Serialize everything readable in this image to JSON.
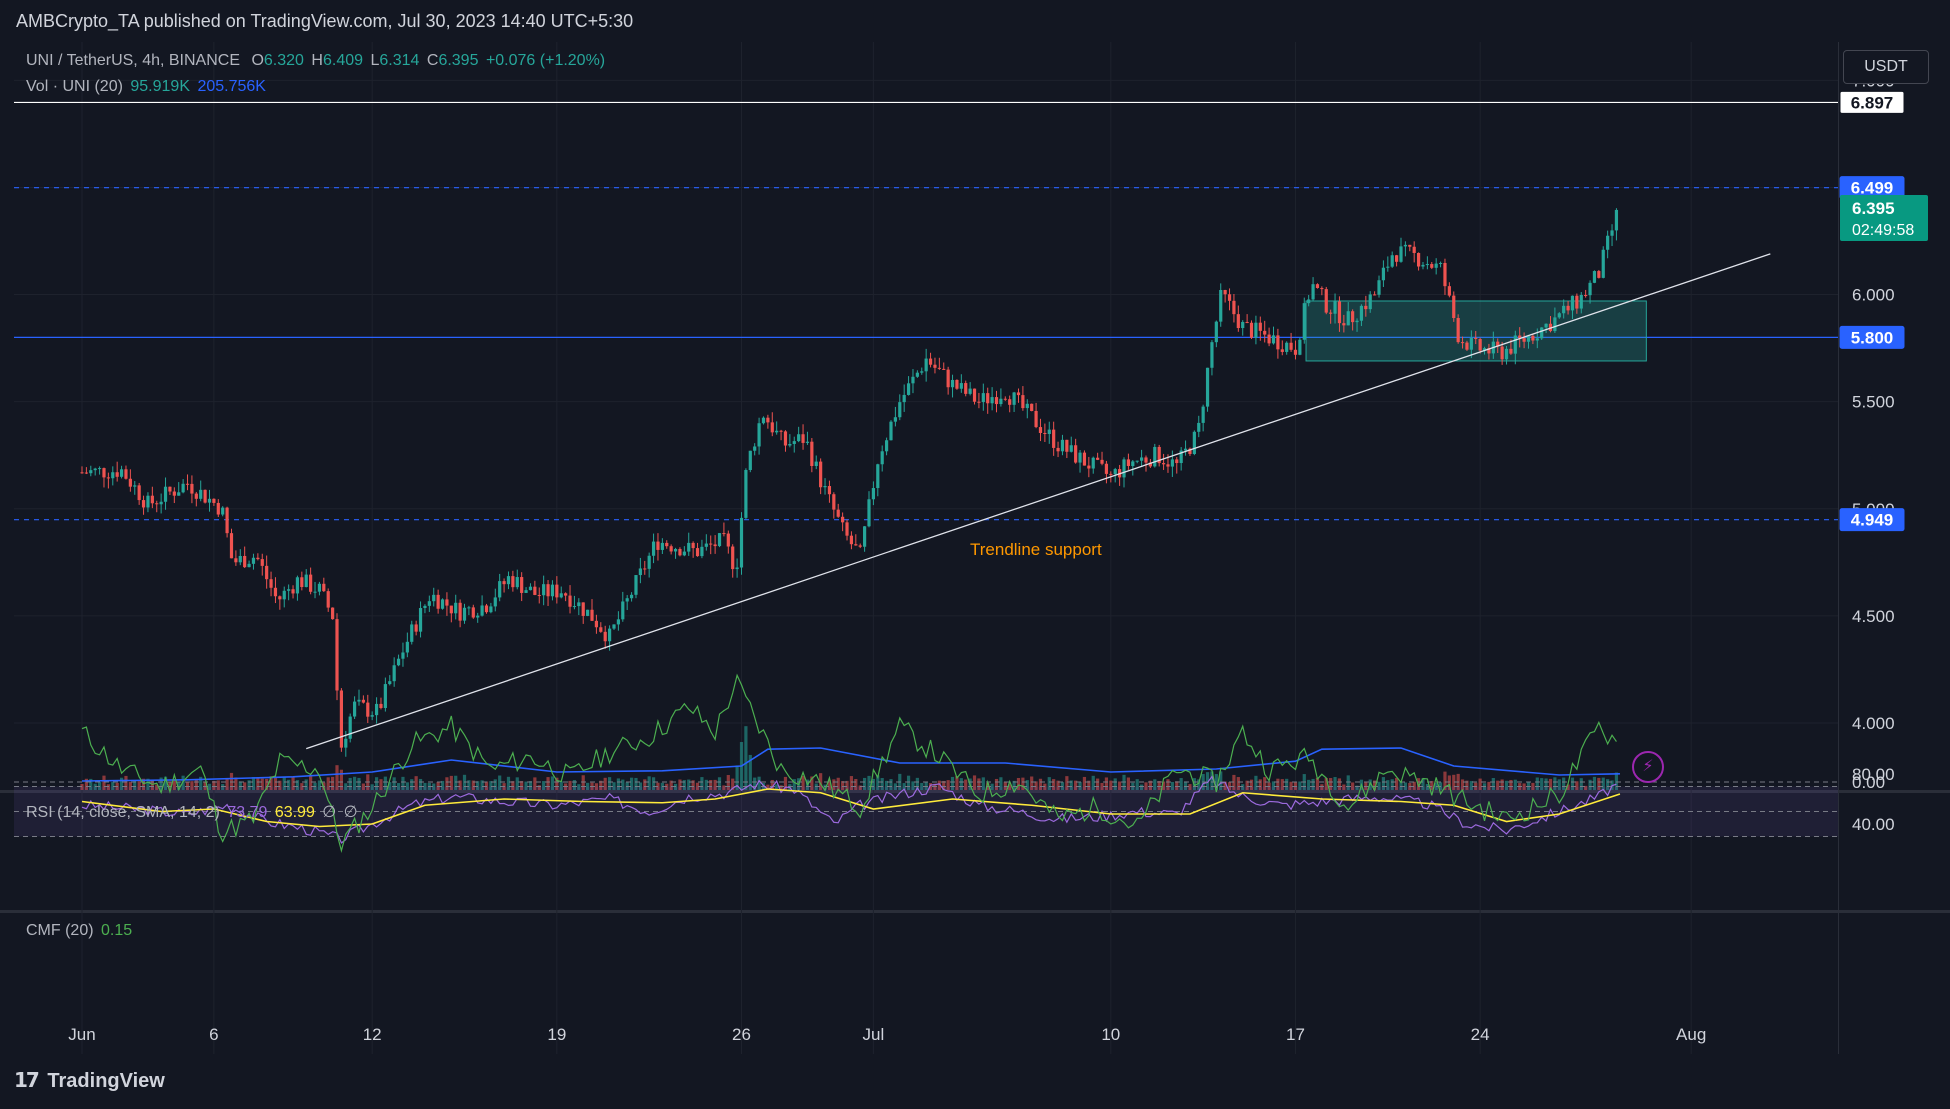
{
  "header": {
    "published_by": "AMBCrypto_TA published on TradingView.com, Jul 30, 2023 14:40 UTC+5:30"
  },
  "legend": {
    "pair": "UNI / TetherUS, 4h, BINANCE",
    "open_label": "O",
    "open": "6.320",
    "high_label": "H",
    "high": "6.409",
    "low_label": "L",
    "low": "6.314",
    "close_label": "C",
    "close": "6.395",
    "change": "+0.076 (+1.20%)",
    "vol_label": "Vol · UNI (20)",
    "vol_value": "95.919K",
    "vol_ma": "205.756K"
  },
  "currency_button": "USDT",
  "annotation": "Trendline support",
  "price_tags": {
    "resistance_top": "6.897",
    "resistance_dash": "6.499",
    "last_price": "6.395",
    "countdown": "02:49:58",
    "support_mid": "5.800",
    "support_low": "4.949"
  },
  "rsi_legend": {
    "label": "RSI (14, close, SMA, 14, 2)",
    "rsi": "73.79",
    "sma": "63.99",
    "na1": "∅",
    "na2": "∅"
  },
  "cmf_legend": {
    "label": "CMF (20)",
    "value": "0.15"
  },
  "footer": {
    "brand": "TradingView",
    "logo_icon": "tradingview-logo-icon"
  },
  "colors": {
    "background": "#131722",
    "up": "#26a69a",
    "down": "#ef5350",
    "blue": "#2962ff",
    "rsi": "#9c6ade",
    "rsi_sma": "#ffeb3b",
    "cmf": "#4caf50"
  },
  "chart_data": [
    {
      "type": "candlestick",
      "title": "UNI / TetherUS, 4h, BINANCE",
      "ylim": [
        3.78,
        7.05
      ],
      "y_ticks": [
        "4.000",
        "4.500",
        "5.000",
        "5.500",
        "6.000",
        "6.500",
        "7.000"
      ],
      "x_ticks": [
        "Jun",
        "6",
        "12",
        "19",
        "26",
        "Jul",
        "10",
        "17",
        "24",
        "Aug"
      ],
      "x_ticks_day_index": [
        0,
        5,
        11,
        18,
        25,
        30,
        39,
        46,
        53,
        61
      ],
      "close_path": [
        [
          0,
          5.17
        ],
        [
          1.5,
          5.18
        ],
        [
          2.5,
          5.02
        ],
        [
          4,
          5.12
        ],
        [
          5.3,
          5.0
        ],
        [
          5.7,
          4.75
        ],
        [
          6.6,
          4.78
        ],
        [
          7.4,
          4.57
        ],
        [
          8.2,
          4.67
        ],
        [
          9.0,
          4.62
        ],
        [
          9.5,
          4.5
        ],
        [
          9.8,
          3.88
        ],
        [
          10.3,
          4.08
        ],
        [
          11.2,
          4.05
        ],
        [
          12.2,
          4.35
        ],
        [
          13.2,
          4.6
        ],
        [
          14.3,
          4.52
        ],
        [
          15.3,
          4.55
        ],
        [
          16.2,
          4.68
        ],
        [
          17.2,
          4.6
        ],
        [
          18.2,
          4.62
        ],
        [
          19.3,
          4.5
        ],
        [
          20.0,
          4.4
        ],
        [
          20.8,
          4.6
        ],
        [
          21.8,
          4.85
        ],
        [
          23.3,
          4.8
        ],
        [
          24.3,
          4.85
        ],
        [
          24.8,
          4.72
        ],
        [
          25.2,
          5.2
        ],
        [
          25.8,
          5.45
        ],
        [
          26.6,
          5.3
        ],
        [
          27.4,
          5.33
        ],
        [
          28.1,
          5.1
        ],
        [
          28.9,
          4.88
        ],
        [
          29.5,
          4.78
        ],
        [
          30.2,
          5.25
        ],
        [
          31.0,
          5.5
        ],
        [
          32.0,
          5.7
        ],
        [
          33.0,
          5.58
        ],
        [
          34.0,
          5.5
        ],
        [
          35.0,
          5.55
        ],
        [
          35.8,
          5.45
        ],
        [
          37.0,
          5.3
        ],
        [
          38.0,
          5.22
        ],
        [
          39.0,
          5.15
        ],
        [
          39.8,
          5.22
        ],
        [
          40.8,
          5.25
        ],
        [
          41.5,
          5.2
        ],
        [
          42.3,
          5.35
        ],
        [
          42.8,
          5.75
        ],
        [
          43.2,
          6.0
        ],
        [
          44.0,
          5.85
        ],
        [
          45.0,
          5.8
        ],
        [
          46.0,
          5.75
        ],
        [
          46.6,
          6.05
        ],
        [
          47.2,
          5.95
        ],
        [
          48.0,
          5.88
        ],
        [
          49.0,
          6.0
        ],
        [
          49.7,
          6.2
        ],
        [
          50.5,
          6.18
        ],
        [
          51.5,
          6.12
        ],
        [
          52.2,
          5.8
        ],
        [
          52.8,
          5.75
        ],
        [
          53.8,
          5.73
        ],
        [
          54.8,
          5.8
        ],
        [
          55.8,
          5.88
        ],
        [
          56.8,
          5.98
        ],
        [
          57.5,
          6.1
        ],
        [
          58.0,
          6.3
        ],
        [
          58.3,
          6.395
        ]
      ],
      "horizontal_levels": [
        6.897,
        6.499,
        5.8,
        4.949
      ],
      "trendline": {
        "from": [
          8.5,
          3.88
        ],
        "to": [
          64.0,
          6.19
        ]
      },
      "zone": {
        "x_from": 46.4,
        "x_to": 59.3,
        "y_from": 5.69,
        "y_to": 5.97
      },
      "volume_ma_path": [
        [
          0,
          0.15
        ],
        [
          4,
          0.17
        ],
        [
          8,
          0.22
        ],
        [
          11,
          0.3
        ],
        [
          14,
          0.5
        ],
        [
          18,
          0.3
        ],
        [
          22,
          0.32
        ],
        [
          25,
          0.4
        ],
        [
          26,
          0.68
        ],
        [
          28,
          0.7
        ],
        [
          31,
          0.45
        ],
        [
          35,
          0.45
        ],
        [
          39,
          0.3
        ],
        [
          43,
          0.35
        ],
        [
          46,
          0.48
        ],
        [
          47,
          0.68
        ],
        [
          50,
          0.7
        ],
        [
          52,
          0.4
        ],
        [
          56,
          0.25
        ],
        [
          58.3,
          0.27
        ]
      ]
    },
    {
      "type": "line",
      "title": "RSI (14, close, SMA, 14, 2)",
      "ylim": [
        20,
        90
      ],
      "y_ticks": [
        "40.00",
        "80.00"
      ],
      "band": [
        30,
        70
      ],
      "series": [
        {
          "name": "RSI",
          "x": [
            0,
            2,
            4,
            5.5,
            7,
            8.5,
            9.8,
            11,
            12.5,
            14,
            16,
            18,
            20,
            21.5,
            23,
            24.5,
            25.5,
            27,
            28.5,
            29.5,
            31,
            32.5,
            34,
            35.5,
            37,
            38.5,
            40,
            41.5,
            42.8,
            44,
            45.5,
            47,
            49,
            51,
            52.5,
            54,
            56,
            57.5,
            58.3
          ],
          "values": [
            55,
            52,
            48,
            55,
            42,
            36,
            28,
            40,
            55,
            62,
            58,
            55,
            60,
            50,
            62,
            65,
            72,
            68,
            40,
            55,
            64,
            70,
            55,
            50,
            44,
            46,
            50,
            48,
            75,
            62,
            55,
            58,
            62,
            56,
            40,
            35,
            50,
            62,
            73.79
          ]
        },
        {
          "name": "SMA",
          "x": [
            0,
            3,
            5,
            7,
            9,
            11,
            13,
            16,
            19,
            22,
            24,
            26,
            28,
            30,
            33,
            36,
            39,
            42,
            44,
            47,
            50,
            52,
            54,
            56,
            58.3
          ],
          "values": [
            58,
            50,
            52,
            42,
            38,
            40,
            55,
            60,
            58,
            57,
            60,
            68,
            65,
            52,
            60,
            55,
            48,
            48,
            65,
            60,
            58,
            55,
            42,
            48,
            63.99
          ]
        }
      ]
    },
    {
      "type": "line",
      "title": "CMF (20)",
      "y_ticks": [
        "0.00"
      ],
      "ylim": [
        -0.35,
        0.45
      ],
      "series": [
        {
          "name": "CMF",
          "x": [
            0,
            1.5,
            3,
            4.5,
            5.3,
            6.5,
            7.5,
            9,
            9.8,
            11,
            12.5,
            14,
            15.5,
            17,
            18.5,
            20,
            21.5,
            23,
            24,
            24.8,
            26.5,
            28,
            29.5,
            31,
            32.5,
            34,
            35.5,
            37,
            38.5,
            40,
            41.5,
            43,
            44,
            45,
            46.5,
            48,
            49.5,
            51,
            52.5,
            54,
            56,
            57.5,
            58.3
          ],
          "values": [
            0.2,
            0.05,
            -0.02,
            0.05,
            -0.2,
            -0.15,
            0.08,
            0.05,
            -0.25,
            -0.1,
            0.15,
            0.22,
            0.05,
            0.1,
            0.02,
            0.12,
            0.18,
            0.3,
            0.2,
            0.4,
            0.05,
            0.0,
            -0.1,
            0.22,
            0.1,
            -0.05,
            0.0,
            -0.15,
            -0.1,
            -0.18,
            0.05,
            0.0,
            0.2,
            0.05,
            0.1,
            -0.1,
            0.05,
            0.0,
            -0.08,
            -0.15,
            -0.05,
            0.22,
            0.15
          ]
        }
      ]
    }
  ]
}
